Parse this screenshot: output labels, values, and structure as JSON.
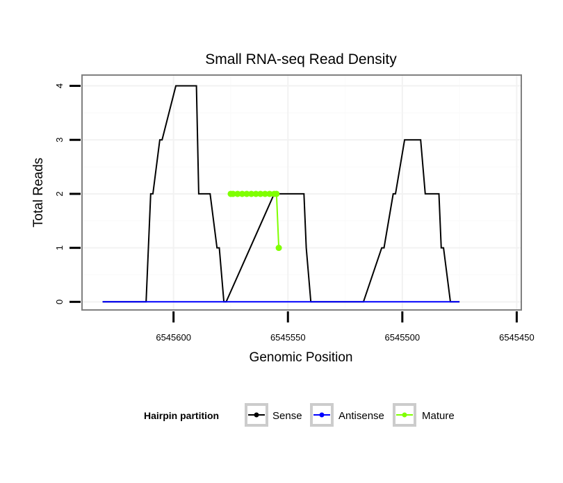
{
  "chart_data": {
    "type": "line",
    "title": "Small RNA-seq Read Density",
    "xlabel": "Genomic Position",
    "ylabel": "Total Reads",
    "x_reversed": true,
    "xlim": [
      6545640,
      6545448
    ],
    "ylim": [
      -0.15,
      4.2
    ],
    "x_ticks": [
      6545600,
      6545550,
      6545500,
      6545450
    ],
    "x_tick_labels": [
      "6545600",
      "6545550",
      "6545500",
      "6545450"
    ],
    "y_ticks": [
      0,
      1,
      2,
      3,
      4
    ],
    "y_tick_labels": [
      "0",
      "1",
      "2",
      "3",
      "4"
    ],
    "grid": true,
    "legend_position": "bottom",
    "legend": {
      "title": "Hairpin partition",
      "entries": [
        {
          "name": "Sense",
          "color": "#000000"
        },
        {
          "name": "Antisense",
          "color": "#0000ff"
        },
        {
          "name": "Mature",
          "color": "#7fff00"
        }
      ]
    },
    "series": [
      {
        "name": "Sense",
        "color": "#000000",
        "x": [
          6545631,
          6545612,
          6545610,
          6545609,
          6545606,
          6545605,
          6545599,
          6545594,
          6545590,
          6545589,
          6545587,
          6545584,
          6545581,
          6545580,
          6545578,
          6545577,
          6545556,
          6545555,
          6545543,
          6545542,
          6545540,
          6545517,
          6545509,
          6545508,
          6545504,
          6545503,
          6545499,
          6545492,
          6545490,
          6545484,
          6545483,
          6545482,
          6545479,
          6545475
        ],
        "y": [
          0,
          0,
          2,
          2,
          3,
          3,
          4,
          4,
          4,
          2,
          2,
          2,
          1,
          1,
          0,
          0,
          2,
          2,
          2,
          1,
          0,
          0,
          1,
          1,
          2,
          2,
          3,
          3,
          2,
          2,
          1,
          1,
          0,
          0
        ]
      },
      {
        "name": "Antisense",
        "color": "#0000ff",
        "x": [
          6545631,
          6545475
        ],
        "y": [
          0,
          0
        ]
      },
      {
        "name": "Mature",
        "color": "#7fff00",
        "x": [
          6545575,
          6545574,
          6545572,
          6545570,
          6545568,
          6545566,
          6545564,
          6545562,
          6545560,
          6545558,
          6545556,
          6545555,
          6545554
        ],
        "y": [
          2,
          2,
          2,
          2,
          2,
          2,
          2,
          2,
          2,
          2,
          2,
          2,
          1
        ]
      }
    ]
  }
}
